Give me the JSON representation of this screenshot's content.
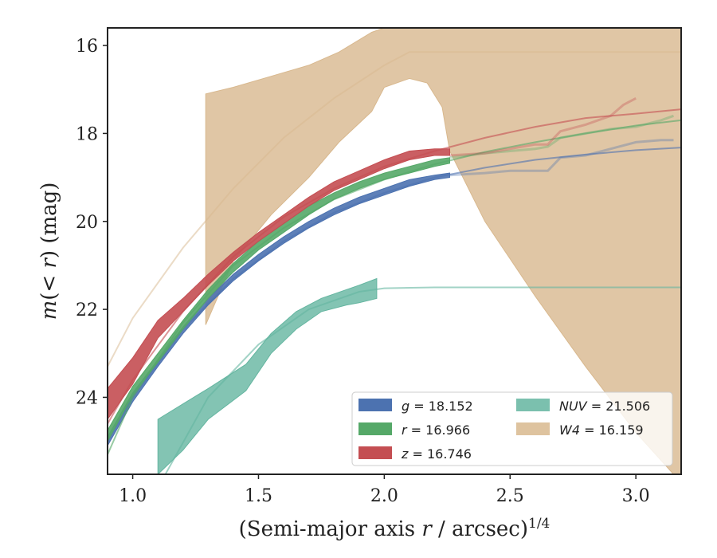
{
  "chart_data": {
    "type": "line",
    "xlabel": "(Semi-major axis r / arcsec)",
    "xlabel_parts": {
      "pre": "(Semi-major axis ",
      "var": "r",
      "post": " / arcsec)",
      "sup": "1/4"
    },
    "ylabel_parts": {
      "var1": "m",
      "mid": "(< ",
      "var2": "r",
      "post": ") (mag)"
    },
    "xlim": [
      0.9,
      3.18
    ],
    "ylim": [
      25.75,
      15.6
    ],
    "y_inverted": true,
    "xticks": [
      1.0,
      1.5,
      2.0,
      2.5,
      3.0
    ],
    "xtick_labels": [
      "1.0",
      "1.5",
      "2.0",
      "2.5",
      "3.0"
    ],
    "yticks": [
      16,
      18,
      20,
      22,
      24
    ],
    "ytick_labels": [
      "16",
      "18",
      "20",
      "22",
      "24"
    ],
    "legend_placement": "lower-right",
    "legend_columns": 2,
    "series": [
      {
        "name": "g",
        "value": "18.152",
        "color": "#4c72b0",
        "band_x": [
          0.9,
          1.0,
          1.1,
          1.2,
          1.3,
          1.4,
          1.5,
          1.6,
          1.7,
          1.8,
          1.9,
          2.0,
          2.1,
          2.2,
          2.26
        ],
        "band_lo": [
          24.9,
          23.9,
          23.15,
          22.4,
          21.75,
          21.2,
          20.75,
          20.35,
          20.0,
          19.7,
          19.45,
          19.25,
          19.05,
          18.95,
          18.9
        ],
        "band_hi": [
          25.1,
          24.1,
          23.3,
          22.55,
          21.9,
          21.35,
          20.9,
          20.5,
          20.15,
          19.85,
          19.6,
          19.4,
          19.2,
          19.05,
          19.0
        ],
        "model_x": [
          0.9,
          1.0,
          1.2,
          1.4,
          1.6,
          1.8,
          2.0,
          2.2,
          2.4,
          2.6,
          2.8,
          3.0,
          3.18
        ],
        "model_y": [
          25.0,
          24.0,
          22.45,
          21.3,
          20.45,
          19.8,
          19.35,
          19.0,
          18.78,
          18.6,
          18.48,
          18.38,
          18.32
        ],
        "tail_x": [
          2.26,
          2.4,
          2.5,
          2.6,
          2.65,
          2.7,
          2.8,
          2.9,
          3.0,
          3.1,
          3.15
        ],
        "tail_y": [
          18.95,
          18.9,
          18.85,
          18.85,
          18.85,
          18.55,
          18.5,
          18.35,
          18.2,
          18.15,
          18.15
        ]
      },
      {
        "name": "r",
        "value": "16.966",
        "color": "#55a868",
        "band_x": [
          0.9,
          1.0,
          1.1,
          1.2,
          1.3,
          1.4,
          1.5,
          1.6,
          1.7,
          1.8,
          1.9,
          2.0,
          2.1,
          2.2,
          2.26
        ],
        "band_lo": [
          24.75,
          23.75,
          23.0,
          22.25,
          21.55,
          20.95,
          20.45,
          20.05,
          19.65,
          19.35,
          19.1,
          18.9,
          18.75,
          18.6,
          18.55
        ],
        "band_hi": [
          25.0,
          23.95,
          23.2,
          22.45,
          21.75,
          21.15,
          20.65,
          20.25,
          19.85,
          19.5,
          19.25,
          19.05,
          18.9,
          18.75,
          18.68
        ],
        "model_x": [
          0.9,
          1.0,
          1.2,
          1.4,
          1.6,
          1.8,
          2.0,
          2.2,
          2.4,
          2.6,
          2.8,
          3.0,
          3.18
        ],
        "model_y": [
          25.3,
          24.0,
          22.3,
          21.0,
          20.15,
          19.5,
          19.05,
          18.7,
          18.42,
          18.2,
          18.0,
          17.82,
          17.7
        ],
        "tail_x": [
          2.26,
          2.4,
          2.5,
          2.6,
          2.65,
          2.7,
          2.8,
          2.9,
          3.0,
          3.1,
          3.15
        ],
        "tail_y": [
          18.55,
          18.45,
          18.4,
          18.35,
          18.3,
          18.1,
          18.0,
          17.9,
          17.85,
          17.7,
          17.6
        ]
      },
      {
        "name": "z",
        "value": "16.746",
        "color": "#c44e52",
        "band_x": [
          0.9,
          1.0,
          1.1,
          1.2,
          1.3,
          1.4,
          1.5,
          1.6,
          1.7,
          1.8,
          1.9,
          2.0,
          2.1,
          2.2,
          2.26
        ],
        "band_lo": [
          23.8,
          23.1,
          22.25,
          21.75,
          21.2,
          20.7,
          20.25,
          19.85,
          19.45,
          19.1,
          18.85,
          18.6,
          18.4,
          18.35,
          18.35
        ],
        "band_hi": [
          24.5,
          23.7,
          22.65,
          22.05,
          21.45,
          20.9,
          20.45,
          20.05,
          19.65,
          19.3,
          19.05,
          18.8,
          18.6,
          18.5,
          18.5
        ],
        "model_x": [
          0.9,
          1.0,
          1.2,
          1.4,
          1.6,
          1.8,
          2.0,
          2.2,
          2.4,
          2.6,
          2.8,
          3.0,
          3.18
        ],
        "model_y": [
          24.6,
          23.6,
          22.05,
          20.8,
          19.9,
          19.25,
          18.75,
          18.4,
          18.1,
          17.85,
          17.65,
          17.55,
          17.45
        ],
        "tail_x": [
          2.26,
          2.4,
          2.5,
          2.6,
          2.65,
          2.7,
          2.8,
          2.9,
          2.95,
          3.0
        ],
        "tail_y": [
          18.5,
          18.45,
          18.35,
          18.25,
          18.25,
          17.95,
          17.8,
          17.6,
          17.35,
          17.2
        ]
      },
      {
        "name": "NUV",
        "value": "21.506",
        "color": "#64b5a0",
        "band_x": [
          1.1,
          1.2,
          1.3,
          1.45,
          1.55,
          1.65,
          1.75,
          1.85,
          1.9,
          1.97
        ],
        "band_lo": [
          24.5,
          24.15,
          23.8,
          23.25,
          22.55,
          22.05,
          21.75,
          21.55,
          21.45,
          21.3
        ],
        "band_hi": [
          25.75,
          25.2,
          24.5,
          23.85,
          23.0,
          22.45,
          22.05,
          21.9,
          21.85,
          21.75
        ],
        "model_x": [
          1.13,
          1.3,
          1.5,
          1.7,
          1.9,
          2.0,
          2.2,
          2.5,
          3.0,
          3.18
        ],
        "model_y": [
          25.75,
          24.0,
          22.8,
          22.0,
          21.6,
          21.52,
          21.5,
          21.5,
          21.5,
          21.5
        ]
      },
      {
        "name": "W4",
        "value": "16.159",
        "color": "#d8b88e",
        "band_x": [
          1.29,
          1.4,
          1.55,
          1.7,
          1.82,
          1.95,
          2.0,
          2.1,
          2.17,
          2.23,
          2.26,
          2.4,
          2.6,
          2.8,
          3.0,
          3.15,
          3.18
        ],
        "band_upper": [
          17.1,
          16.95,
          16.7,
          16.45,
          16.15,
          15.7,
          15.6,
          15.6,
          15.6,
          15.6,
          15.6,
          15.6,
          15.6,
          15.6,
          15.6,
          15.6,
          15.6
        ],
        "band_lower": [
          22.35,
          20.9,
          19.85,
          19.0,
          18.2,
          17.5,
          16.95,
          16.75,
          16.85,
          17.4,
          18.4,
          20.0,
          21.7,
          23.3,
          24.8,
          25.75,
          25.75
        ],
        "model_x": [
          0.9,
          1.0,
          1.2,
          1.4,
          1.6,
          1.8,
          2.0,
          2.1,
          2.5,
          3.0,
          3.18
        ],
        "model_y": [
          23.3,
          22.2,
          20.6,
          19.25,
          18.1,
          17.2,
          16.45,
          16.15,
          16.15,
          16.15,
          16.15
        ]
      }
    ]
  }
}
